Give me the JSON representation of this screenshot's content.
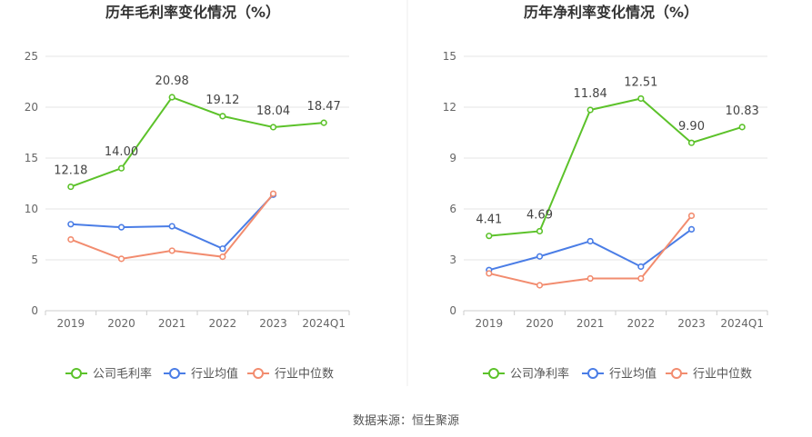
{
  "source": "数据来源：恒生聚源",
  "colors": {
    "company": "#5cc22a",
    "industry_avg": "#4a7de6",
    "industry_median": "#f28c6f",
    "grid": "#e6e6e6",
    "axis_text": "#666666",
    "title": "#333333",
    "divider": "#eeeeee"
  },
  "chart_data": [
    {
      "type": "line",
      "title": "历年毛利率变化情况（%）",
      "categories": [
        "2019",
        "2020",
        "2021",
        "2022",
        "2023",
        "2024Q1"
      ],
      "ylim": [
        0,
        25
      ],
      "yticks": [
        0,
        5,
        10,
        15,
        20,
        25
      ],
      "grid": true,
      "legend_position": "bottom",
      "series": [
        {
          "key": "company",
          "name": "公司毛利率",
          "values": [
            12.18,
            14.0,
            20.98,
            19.12,
            18.04,
            18.47
          ],
          "labels": [
            "12.18",
            "14.00",
            "20.98",
            "19.12",
            "18.04",
            "18.47"
          ]
        },
        {
          "key": "industry_avg",
          "name": "行业均值",
          "values": [
            8.5,
            8.2,
            8.3,
            6.1,
            11.4,
            null
          ]
        },
        {
          "key": "industry_median",
          "name": "行业中位数",
          "values": [
            7.0,
            5.1,
            5.9,
            5.3,
            11.5,
            null
          ]
        }
      ]
    },
    {
      "type": "line",
      "title": "历年净利率变化情况（%）",
      "categories": [
        "2019",
        "2020",
        "2021",
        "2022",
        "2023",
        "2024Q1"
      ],
      "ylim": [
        0,
        15
      ],
      "yticks": [
        0,
        3,
        6,
        9,
        12,
        15
      ],
      "grid": true,
      "legend_position": "bottom",
      "series": [
        {
          "key": "company",
          "name": "公司净利率",
          "values": [
            4.41,
            4.69,
            11.84,
            12.51,
            9.9,
            10.83
          ],
          "labels": [
            "4.41",
            "4.69",
            "11.84",
            "12.51",
            "9.90",
            "10.83"
          ]
        },
        {
          "key": "industry_avg",
          "name": "行业均值",
          "values": [
            2.4,
            3.2,
            4.1,
            2.6,
            4.8,
            null
          ]
        },
        {
          "key": "industry_median",
          "name": "行业中位数",
          "values": [
            2.2,
            1.5,
            1.9,
            1.9,
            5.6,
            null
          ]
        }
      ]
    }
  ]
}
